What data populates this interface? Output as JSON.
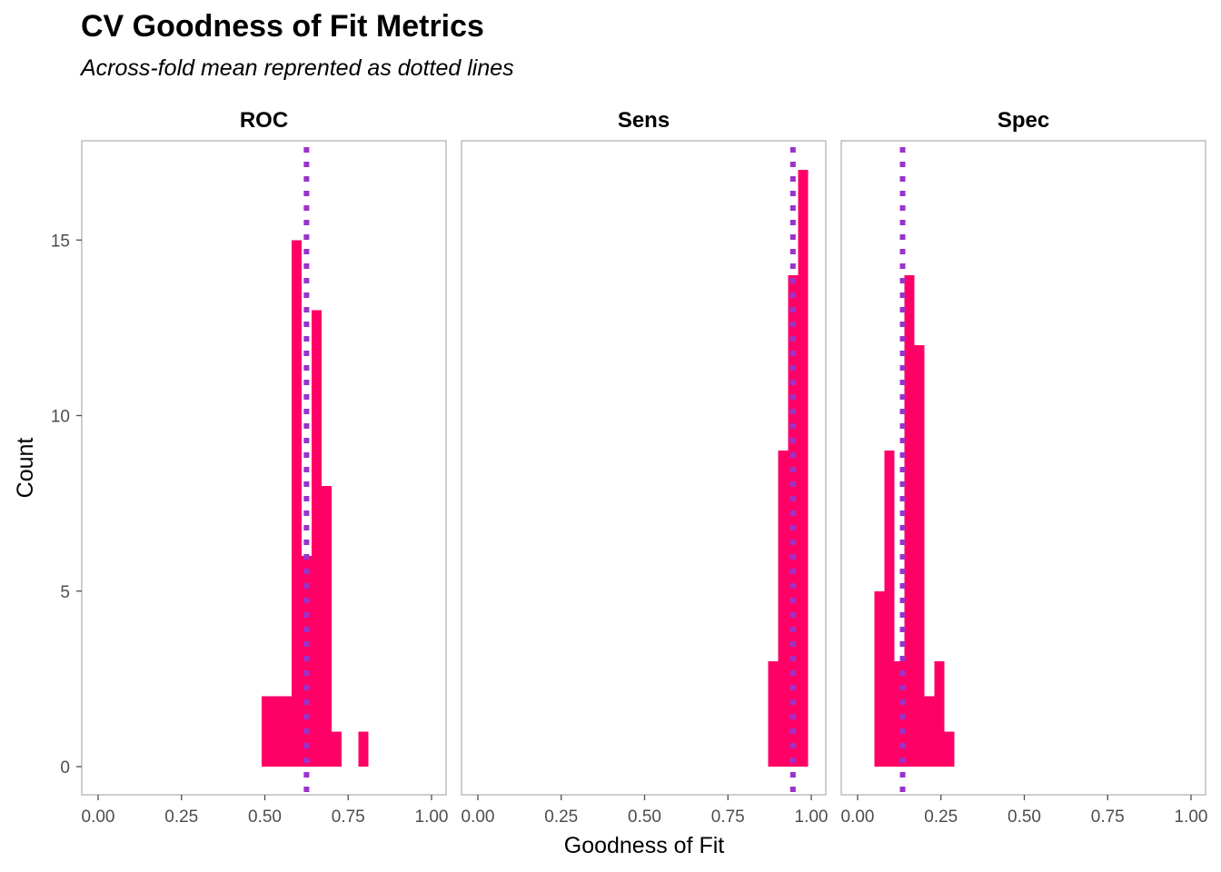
{
  "chart_data": {
    "type": "bar",
    "title": "CV Goodness of Fit Metrics",
    "subtitle": "Across-fold mean reprented as dotted lines",
    "xlabel": "Goodness of Fit",
    "ylabel": "Count",
    "xlim": [
      0,
      1
    ],
    "ylim": [
      0,
      17
    ],
    "x_ticks": [
      "0.00",
      "0.25",
      "0.50",
      "0.75",
      "1.00"
    ],
    "y_ticks": [
      "0",
      "5",
      "10",
      "15"
    ],
    "grid": false,
    "bar_color": "#ff0066",
    "mean_line_color": "#9933cc",
    "panels": [
      {
        "name": "ROC",
        "mean": 0.625,
        "bins": [
          {
            "x0": 0.49,
            "x1": 0.52,
            "count": 2
          },
          {
            "x0": 0.52,
            "x1": 0.55,
            "count": 2
          },
          {
            "x0": 0.55,
            "x1": 0.58,
            "count": 2
          },
          {
            "x0": 0.58,
            "x1": 0.61,
            "count": 15
          },
          {
            "x0": 0.61,
            "x1": 0.64,
            "count": 6
          },
          {
            "x0": 0.64,
            "x1": 0.67,
            "count": 13
          },
          {
            "x0": 0.67,
            "x1": 0.7,
            "count": 8
          },
          {
            "x0": 0.7,
            "x1": 0.73,
            "count": 1
          },
          {
            "x0": 0.78,
            "x1": 0.81,
            "count": 1
          }
        ]
      },
      {
        "name": "Sens",
        "mean": 0.945,
        "bins": [
          {
            "x0": 0.87,
            "x1": 0.9,
            "count": 3
          },
          {
            "x0": 0.9,
            "x1": 0.93,
            "count": 9
          },
          {
            "x0": 0.93,
            "x1": 0.96,
            "count": 14
          },
          {
            "x0": 0.96,
            "x1": 0.99,
            "count": 17
          }
        ]
      },
      {
        "name": "Spec",
        "mean": 0.135,
        "bins": [
          {
            "x0": 0.05,
            "x1": 0.08,
            "count": 5
          },
          {
            "x0": 0.08,
            "x1": 0.11,
            "count": 9
          },
          {
            "x0": 0.11,
            "x1": 0.14,
            "count": 3
          },
          {
            "x0": 0.14,
            "x1": 0.17,
            "count": 14
          },
          {
            "x0": 0.17,
            "x1": 0.2,
            "count": 12
          },
          {
            "x0": 0.2,
            "x1": 0.23,
            "count": 2
          },
          {
            "x0": 0.23,
            "x1": 0.26,
            "count": 3
          },
          {
            "x0": 0.26,
            "x1": 0.29,
            "count": 1
          }
        ]
      }
    ]
  }
}
